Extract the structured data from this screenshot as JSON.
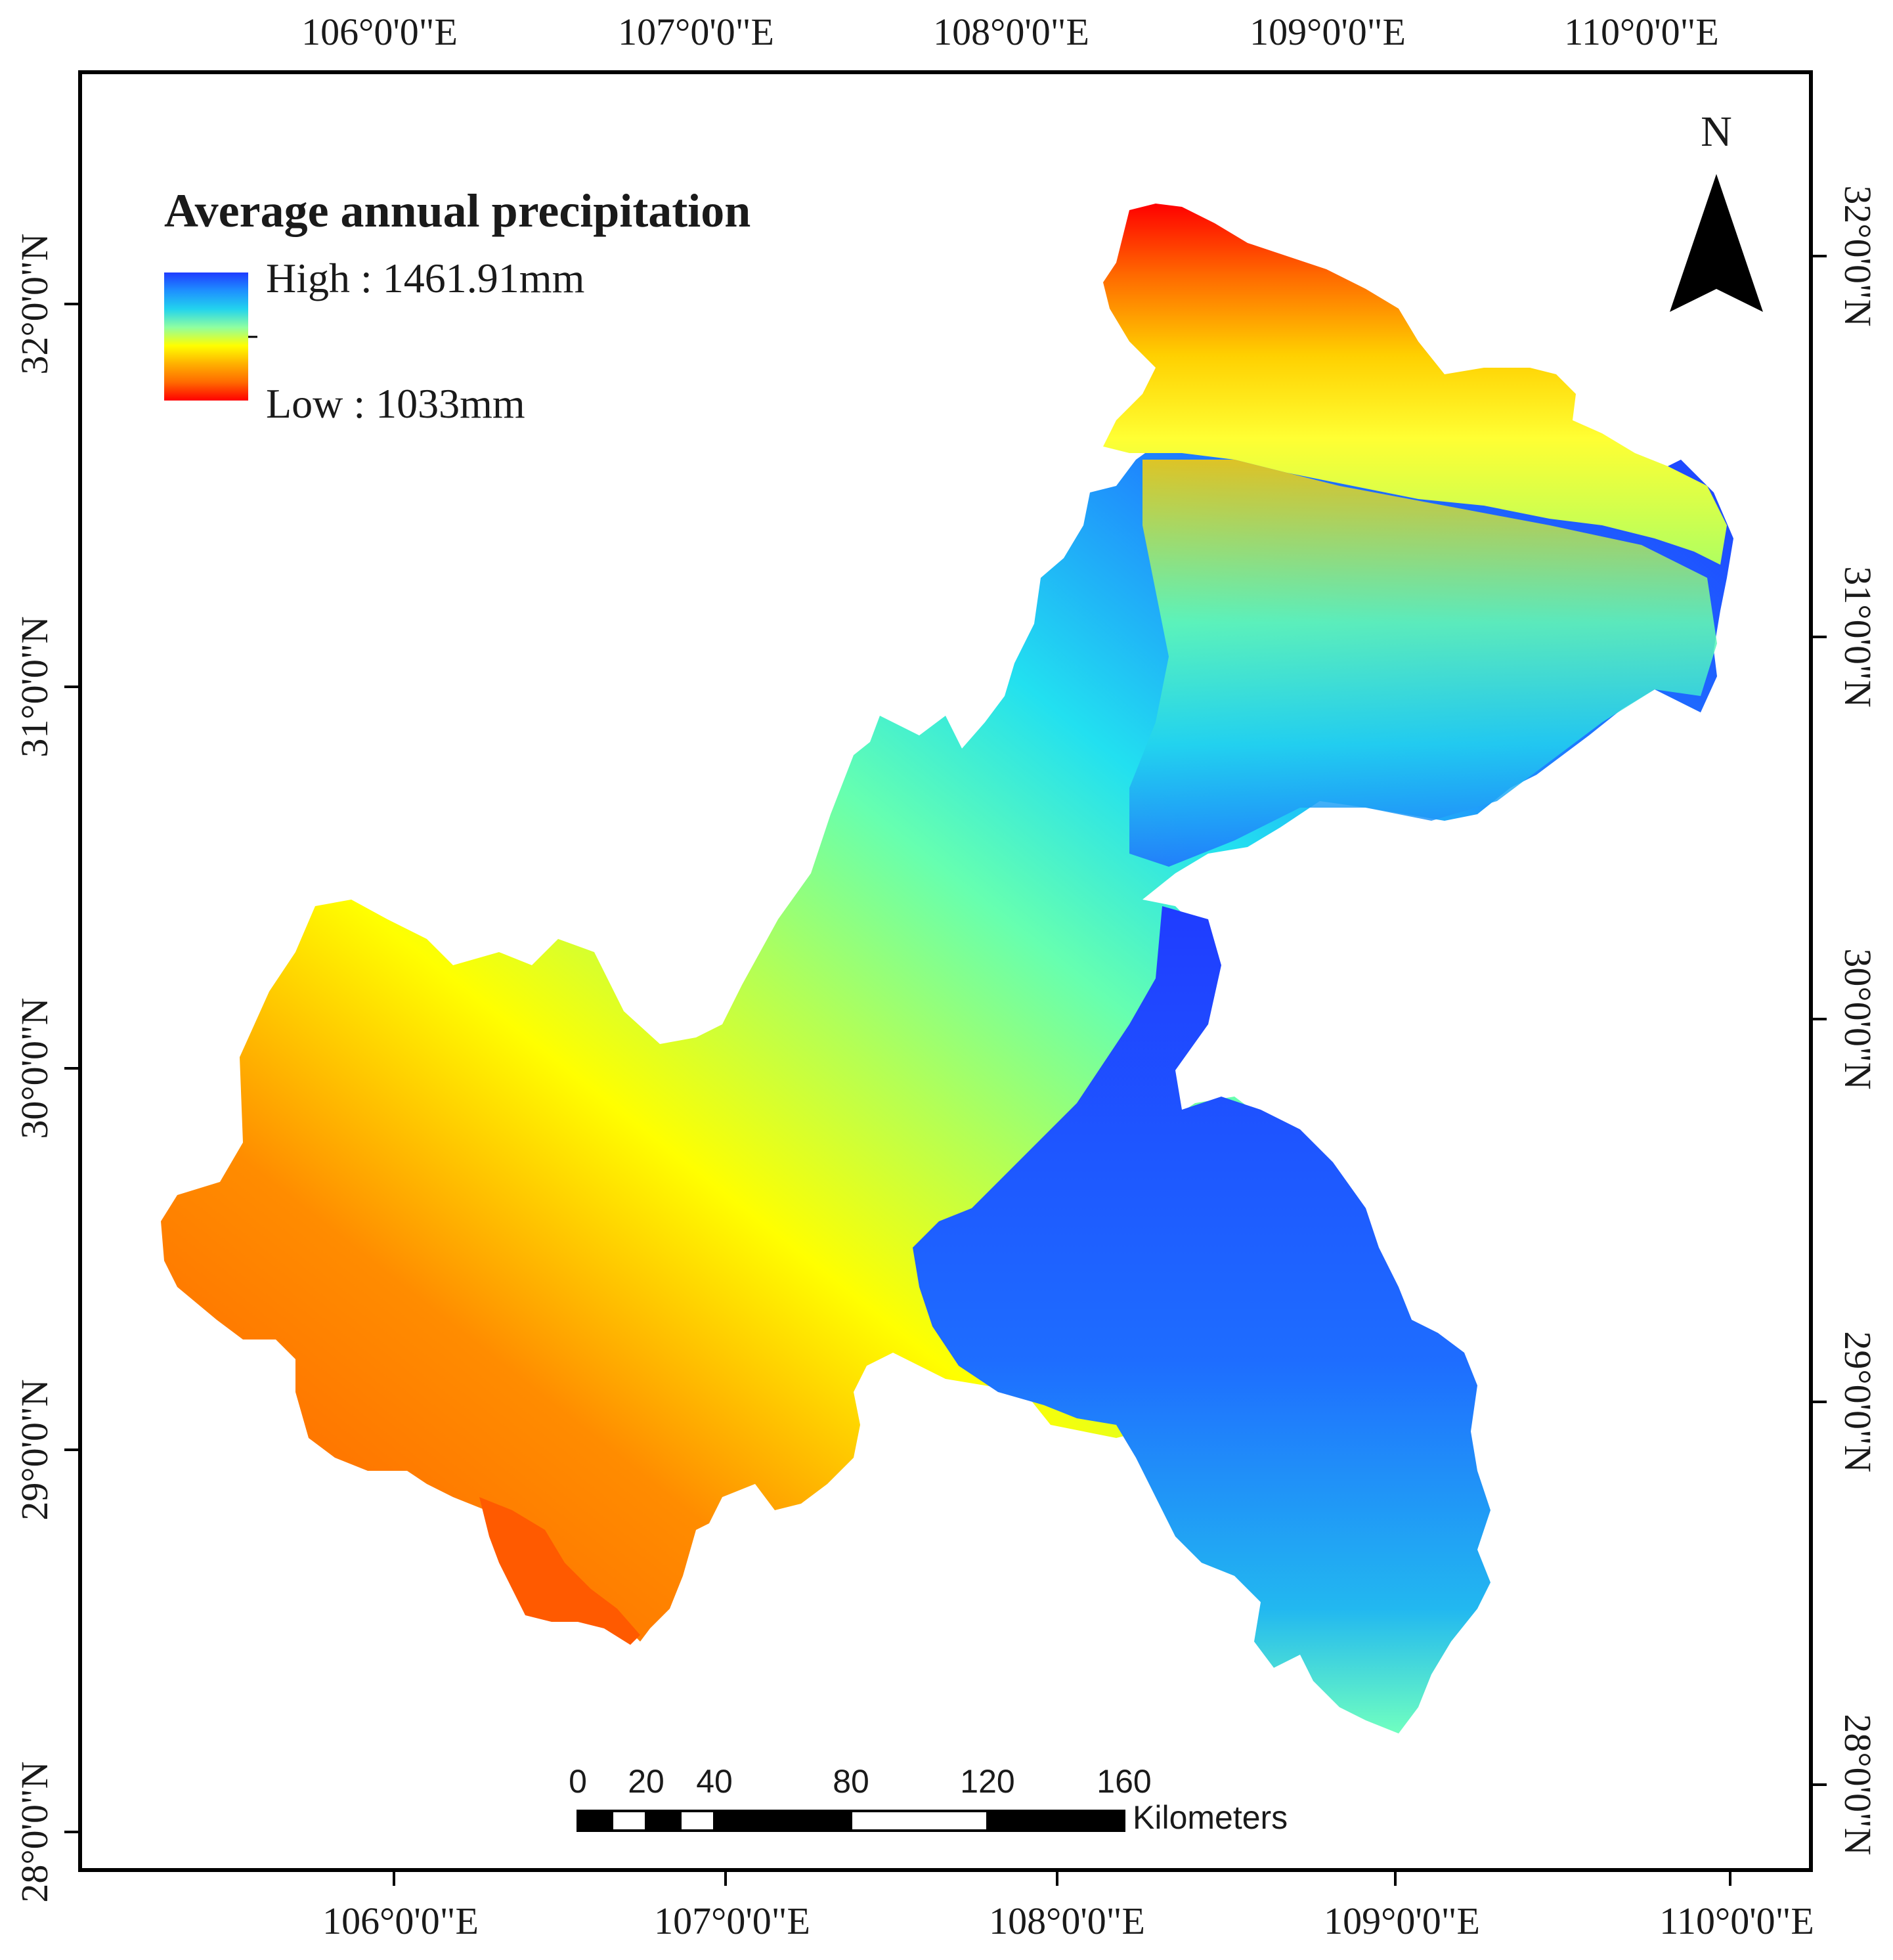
{
  "map": {
    "top_longitude_labels": [
      "106°0'0\"E",
      "107°0'0\"E",
      "108°0'0\"E",
      "109°0'0\"E",
      "110°0'0\"E"
    ],
    "bottom_longitude_labels": [
      "106°0'0\"E",
      "107°0'0\"E",
      "108°0'0\"E",
      "109°0'0\"E",
      "110°0'0\"E"
    ],
    "left_latitude_labels": [
      "32°0'0\"N",
      "31°0'0\"N",
      "30°0'0\"N",
      "29°0'0\"N",
      "28°0'0\"N"
    ],
    "right_latitude_labels": [
      "32°0'0\"N",
      "31°0'0\"N",
      "30°0'0\"N",
      "29°0'0\"N",
      "28°0'0\"N"
    ]
  },
  "legend": {
    "title": "Average annual precipitation",
    "high_label": "High : 1461.91mm",
    "low_label": "Low : 1033mm",
    "colors": [
      "#1f3cff",
      "#1e90ff",
      "#22d3ee",
      "#8fffa0",
      "#ffff00",
      "#ffb000",
      "#ff6a00",
      "#ff0000"
    ]
  },
  "north_arrow": {
    "label": "N",
    "icon": "north-arrow-icon"
  },
  "scale_bar": {
    "tick_labels": [
      "0",
      "20",
      "40",
      "80",
      "120",
      "160"
    ],
    "unit": "Kilometers"
  }
}
